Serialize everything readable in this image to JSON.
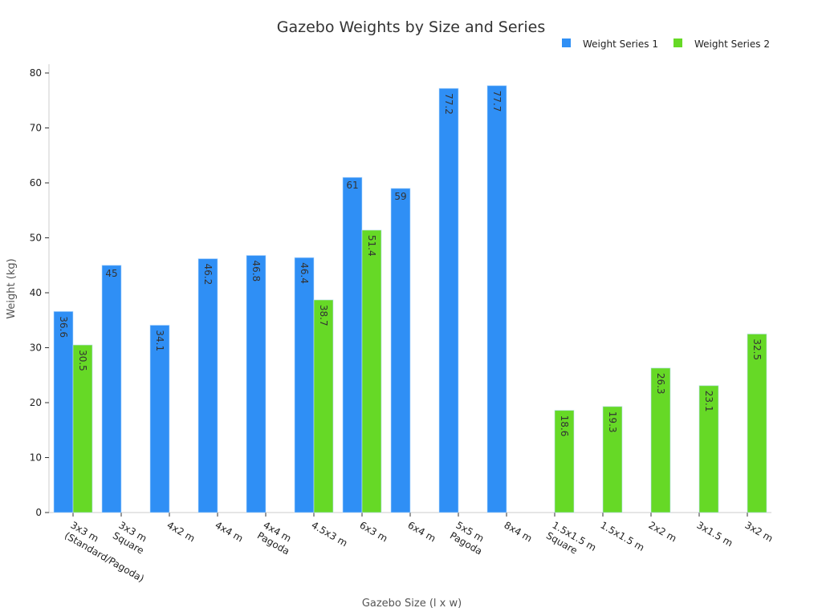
{
  "chart_data": {
    "type": "bar",
    "title": "Gazebo Weights by Size and Series",
    "xlabel": "Gazebo Size (l x w)",
    "ylabel": "Weight (kg)",
    "ylim": [
      0,
      80
    ],
    "yticks": [
      0,
      10,
      20,
      30,
      40,
      50,
      60,
      70,
      80
    ],
    "grid": false,
    "legend_position": "top-right",
    "categories": [
      "3x3 m\n(Standard/Pagoda)",
      "3x3 m\nSquare",
      "4x2 m",
      "4x4 m",
      "4x4 m\nPagoda",
      "4.5x3 m",
      "6x3 m",
      "6x4 m",
      "5x5 m\nPagoda",
      "8x4 m",
      "1.5x1.5 m\nSquare",
      "1.5x1.5 m",
      "2x2 m",
      "3x1.5 m",
      "3x2 m"
    ],
    "series": [
      {
        "name": "Weight Series 1",
        "color": "#2f8ff5",
        "values": [
          36.6,
          45,
          34.1,
          46.2,
          46.8,
          46.4,
          61,
          59,
          77.2,
          77.7,
          null,
          null,
          null,
          null,
          null
        ]
      },
      {
        "name": "Weight Series 2",
        "color": "#66d926",
        "values": [
          30.5,
          null,
          null,
          null,
          null,
          38.7,
          51.4,
          null,
          null,
          null,
          18.6,
          19.3,
          26.3,
          23.1,
          32.5
        ]
      }
    ]
  }
}
